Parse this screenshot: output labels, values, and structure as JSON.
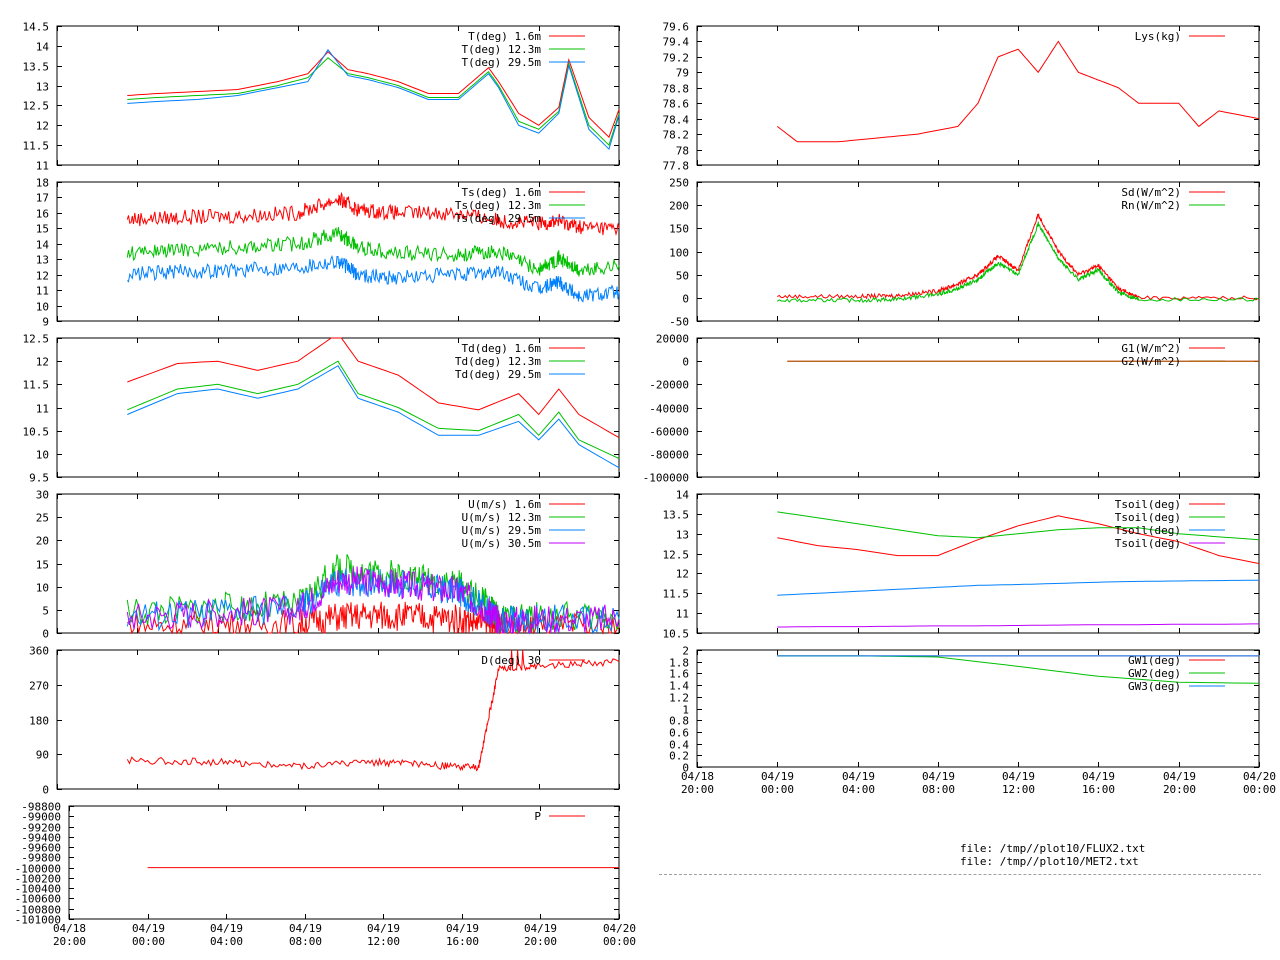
{
  "files": [
    "file: /tmp//plot10/FLUX2.txt",
    "file: /tmp//plot10/MET2.txt"
  ],
  "colors": {
    "red": "#ff0000",
    "green": "#00c000",
    "blue": "#0080ff",
    "purple": "#c000ff"
  },
  "time_ticks": [
    "04/18\n20:00",
    "04/19\n00:00",
    "04/19\n04:00",
    "04/19\n08:00",
    "04/19\n12:00",
    "04/19\n16:00",
    "04/19\n20:00",
    "04/20\n00:00"
  ],
  "chart_data": [
    {
      "id": "T",
      "type": "line",
      "x_range": [
        "04/18 20:00",
        "04/20 00:00"
      ],
      "ylim": [
        11,
        14.5
      ],
      "yticks": [
        "11",
        "11.5",
        "12",
        "12.5",
        "13",
        "13.5",
        "14",
        "14.5"
      ],
      "x": [
        "04/18 23:30",
        "04/19 01:00",
        "04/19 03:00",
        "04/19 05:00",
        "04/19 07:00",
        "04/19 08:30",
        "04/19 09:30",
        "04/19 10:30",
        "04/19 11:30",
        "04/19 13:00",
        "04/19 14:30",
        "04/19 16:00",
        "04/19 17:30",
        "04/19 18:00",
        "04/19 19:00",
        "04/19 20:00",
        "04/19 21:00",
        "04/19 21:30",
        "04/19 22:30",
        "04/19 23:30",
        "04/20 00:00"
      ],
      "series": [
        {
          "name": "T(deg)  1.6m",
          "color": "#ff0000",
          "values": [
            12.75,
            12.8,
            12.85,
            12.9,
            13.1,
            13.3,
            13.85,
            13.4,
            13.3,
            13.1,
            12.8,
            12.8,
            13.45,
            13.1,
            12.3,
            12.0,
            12.45,
            13.65,
            12.2,
            11.7,
            12.4
          ]
        },
        {
          "name": "T(deg) 12.3m",
          "color": "#00c000",
          "values": [
            12.65,
            12.7,
            12.75,
            12.8,
            13.0,
            13.2,
            13.7,
            13.3,
            13.2,
            13.0,
            12.7,
            12.7,
            13.35,
            13.0,
            12.1,
            11.9,
            12.35,
            13.55,
            12.0,
            11.5,
            12.3
          ]
        },
        {
          "name": "T(deg) 29.5m",
          "color": "#0080ff",
          "values": [
            12.55,
            12.6,
            12.65,
            12.75,
            12.95,
            13.1,
            13.9,
            13.25,
            13.15,
            12.95,
            12.65,
            12.65,
            13.3,
            12.95,
            12.0,
            11.8,
            12.3,
            13.5,
            11.9,
            11.4,
            12.25
          ]
        }
      ]
    },
    {
      "id": "Ts",
      "type": "line",
      "x_range": [
        "04/18 20:00",
        "04/20 00:00"
      ],
      "ylim": [
        9,
        18
      ],
      "yticks": [
        "9",
        "10",
        "11",
        "12",
        "13",
        "14",
        "15",
        "16",
        "17",
        "18"
      ],
      "x": [
        "04/18 23:30",
        "04/19 02:00",
        "04/19 05:00",
        "04/19 08:00",
        "04/19 10:00",
        "04/19 11:00",
        "04/19 13:00",
        "04/19 16:00",
        "04/19 18:00",
        "04/19 20:00",
        "04/19 21:00",
        "04/19 22:00",
        "04/20 00:00"
      ],
      "series": [
        {
          "name": "Ts(deg)  1.6m",
          "color": "#ff0000",
          "values": [
            15.6,
            15.7,
            15.8,
            16.0,
            16.9,
            16.2,
            16.0,
            16.0,
            15.5,
            15.3,
            15.5,
            15.1,
            15.0
          ]
        },
        {
          "name": "Ts(deg) 12.3m",
          "color": "#00c000",
          "values": [
            13.4,
            13.6,
            13.8,
            14.0,
            14.7,
            13.8,
            13.4,
            13.3,
            13.5,
            12.3,
            13.1,
            12.2,
            12.6
          ]
        },
        {
          "name": "Ts(deg) 29.5m",
          "color": "#0080ff",
          "values": [
            12.0,
            12.2,
            12.3,
            12.5,
            12.9,
            12.0,
            11.8,
            12.0,
            12.2,
            11.0,
            11.6,
            10.6,
            10.9
          ]
        }
      ]
    },
    {
      "id": "Td",
      "type": "line",
      "x_range": [
        "04/18 20:00",
        "04/20 00:00"
      ],
      "ylim": [
        9.5,
        12.5
      ],
      "yticks": [
        "9.5",
        "10",
        "10.5",
        "11",
        "11.5",
        "12",
        "12.5"
      ],
      "x": [
        "04/18 23:30",
        "04/19 02:00",
        "04/19 04:00",
        "04/19 06:00",
        "04/19 08:00",
        "04/19 10:00",
        "04/19 11:00",
        "04/19 13:00",
        "04/19 15:00",
        "04/19 17:00",
        "04/19 19:00",
        "04/19 20:00",
        "04/19 21:00",
        "04/19 22:00",
        "04/20 00:00"
      ],
      "series": [
        {
          "name": "Td(deg)  1.6m",
          "color": "#ff0000",
          "values": [
            11.55,
            11.95,
            12.0,
            11.8,
            12.0,
            12.6,
            12.0,
            11.7,
            11.1,
            10.95,
            11.3,
            10.85,
            11.4,
            10.85,
            10.35
          ]
        },
        {
          "name": "Td(deg) 12.3m",
          "color": "#00c000",
          "values": [
            10.95,
            11.4,
            11.5,
            11.3,
            11.5,
            12.0,
            11.3,
            11.0,
            10.55,
            10.5,
            10.85,
            10.4,
            10.9,
            10.3,
            9.9
          ]
        },
        {
          "name": "Td(deg) 29.5m",
          "color": "#0080ff",
          "values": [
            10.85,
            11.3,
            11.4,
            11.2,
            11.4,
            11.9,
            11.2,
            10.9,
            10.4,
            10.4,
            10.7,
            10.3,
            10.75,
            10.2,
            9.7
          ]
        }
      ]
    },
    {
      "id": "U",
      "type": "line",
      "x_range": [
        "04/18 20:00",
        "04/20 00:00"
      ],
      "ylim": [
        0,
        30
      ],
      "yticks": [
        "0",
        "5",
        "10",
        "15",
        "20",
        "25",
        "30"
      ],
      "x": [
        "04/18 23:30",
        "04/19 04:00",
        "04/19 08:00",
        "04/19 10:00",
        "04/19 12:00",
        "04/19 14:00",
        "04/19 16:00",
        "04/19 17:30",
        "04/19 18:00",
        "04/19 20:00",
        "04/20 00:00"
      ],
      "series": [
        {
          "name": "U(m/s)  1.6m",
          "color": "#ff0000",
          "values": [
            1.5,
            1.8,
            2.0,
            3.5,
            3.8,
            3.5,
            3.0,
            2.0,
            0.8,
            1.0,
            1.2
          ]
        },
        {
          "name": "U(m/s) 12.3m",
          "color": "#00c000",
          "values": [
            4.5,
            5.5,
            6.0,
            14.0,
            13.0,
            12.0,
            10.5,
            6.0,
            3.0,
            3.5,
            3.5
          ]
        },
        {
          "name": "U(m/s) 29.5m",
          "color": "#0080ff",
          "values": [
            3.5,
            4.5,
            5.0,
            11.0,
            11.0,
            10.0,
            9.0,
            5.0,
            2.5,
            3.0,
            3.0
          ]
        },
        {
          "name": "U(m/s) 30.5m",
          "color": "#c000ff",
          "values": [
            3.5,
            4.5,
            5.0,
            11.5,
            11.0,
            10.0,
            9.0,
            5.0,
            2.5,
            3.0,
            3.0
          ]
        }
      ]
    },
    {
      "id": "D",
      "type": "line",
      "x_range": [
        "04/18 20:00",
        "04/20 00:00"
      ],
      "ylim": [
        0,
        360
      ],
      "yticks": [
        "0",
        "90",
        "180",
        "270",
        "360"
      ],
      "x": [
        "04/18 23:30",
        "04/19 04:00",
        "04/19 08:00",
        "04/19 12:00",
        "04/19 15:00",
        "04/19 17:00",
        "04/19 18:00",
        "04/19 20:00",
        "04/20 00:00"
      ],
      "series": [
        {
          "name": "D(deg) 30",
          "color": "#ff0000",
          "values": [
            75,
            70,
            60,
            70,
            60,
            55,
            310,
            320,
            330
          ]
        }
      ]
    },
    {
      "id": "P",
      "type": "line",
      "x_range": [
        "04/18 20:00",
        "04/20 00:00"
      ],
      "ylim": [
        -101000,
        -98800
      ],
      "yticks": [
        "-101000",
        "-100800",
        "-100600",
        "-100400",
        "-100200",
        "-100000",
        "-99800",
        "-99600",
        "-99400",
        "-99200",
        "-99000",
        "-98800"
      ],
      "x": [
        "04/19 00:00",
        "04/20 00:00"
      ],
      "series": [
        {
          "name": "P",
          "color": "#ff0000",
          "values": [
            -100000,
            -100000
          ]
        }
      ]
    },
    {
      "id": "Lys",
      "type": "line",
      "x_range": [
        "04/18 20:00",
        "04/20 00:00"
      ],
      "ylim": [
        77.8,
        79.6
      ],
      "yticks": [
        "77.8",
        "78",
        "78.2",
        "78.4",
        "78.6",
        "78.8",
        "79",
        "79.2",
        "79.4",
        "79.6"
      ],
      "x": [
        "04/19 00:00",
        "04/19 01:00",
        "04/19 03:00",
        "04/19 05:00",
        "04/19 07:00",
        "04/19 09:00",
        "04/19 10:00",
        "04/19 11:00",
        "04/19 12:00",
        "04/19 13:00",
        "04/19 14:00",
        "04/19 15:00",
        "04/19 16:00",
        "04/19 17:00",
        "04/19 18:00",
        "04/19 20:00",
        "04/19 21:00",
        "04/19 22:00",
        "04/20 00:00"
      ],
      "series": [
        {
          "name": "Lys(kg)",
          "color": "#ff0000",
          "values": [
            78.3,
            78.1,
            78.1,
            78.15,
            78.2,
            78.3,
            78.6,
            79.2,
            79.3,
            79.0,
            79.4,
            79.0,
            78.9,
            78.8,
            78.6,
            78.6,
            78.3,
            78.5,
            78.4
          ]
        }
      ]
    },
    {
      "id": "Sd",
      "type": "line",
      "x_range": [
        "04/18 20:00",
        "04/20 00:00"
      ],
      "ylim": [
        -50,
        250
      ],
      "yticks": [
        "-50",
        "0",
        "50",
        "100",
        "150",
        "200",
        "250"
      ],
      "x": [
        "04/19 00:00",
        "04/19 04:00",
        "04/19 06:00",
        "04/19 08:00",
        "04/19 09:00",
        "04/19 10:00",
        "04/19 11:00",
        "04/19 12:00",
        "04/19 13:00",
        "04/19 14:00",
        "04/19 15:00",
        "04/19 16:00",
        "04/19 17:00",
        "04/19 18:00",
        "04/20 00:00"
      ],
      "series": [
        {
          "name": "Sd(W/m^2)",
          "color": "#ff0000",
          "values": [
            3,
            3,
            5,
            15,
            30,
            50,
            90,
            60,
            180,
            100,
            50,
            70,
            20,
            0,
            0
          ]
        },
        {
          "name": "Rn(W/m^2)",
          "color": "#00c000",
          "values": [
            -5,
            -5,
            -3,
            8,
            20,
            40,
            75,
            50,
            160,
            85,
            40,
            60,
            12,
            -3,
            -3
          ]
        }
      ]
    },
    {
      "id": "G",
      "type": "line",
      "x_range": [
        "04/18 20:00",
        "04/20 00:00"
      ],
      "ylim": [
        -100000,
        20000
      ],
      "yticks": [
        "-100000",
        "-80000",
        "-60000",
        "-40000",
        "-20000",
        "0",
        "20000"
      ],
      "x": [
        "04/19 00:30",
        "04/20 00:00"
      ],
      "series": [
        {
          "name": "G1(W/m^2)",
          "color": "#ff0000",
          "values": [
            0,
            0
          ]
        },
        {
          "name": "G2(W/m^2)",
          "color": "#a06000",
          "values": [
            0,
            0
          ]
        }
      ]
    },
    {
      "id": "Tsoil",
      "type": "line",
      "x_range": [
        "04/18 20:00",
        "04/20 00:00"
      ],
      "ylim": [
        10.5,
        14
      ],
      "yticks": [
        "10.5",
        "11",
        "11.5",
        "12",
        "12.5",
        "13",
        "13.5",
        "14"
      ],
      "x": [
        "04/19 00:00",
        "04/19 02:00",
        "04/19 04:00",
        "04/19 06:00",
        "04/19 08:00",
        "04/19 10:00",
        "04/19 12:00",
        "04/19 14:00",
        "04/19 16:00",
        "04/19 18:00",
        "04/19 20:00",
        "04/19 22:00",
        "04/20 00:00"
      ],
      "series": [
        {
          "name": "Tsoil(deg)",
          "color": "#ff0000",
          "values": [
            12.9,
            12.7,
            12.6,
            12.45,
            12.45,
            12.85,
            13.2,
            13.45,
            13.25,
            13.0,
            12.8,
            12.45,
            12.25
          ]
        },
        {
          "name": "Tsoil(deg)",
          "color": "#00c000",
          "values": [
            13.55,
            13.4,
            13.25,
            13.1,
            12.95,
            12.9,
            13.0,
            13.1,
            13.15,
            13.15,
            13.0,
            12.92,
            12.85
          ]
        },
        {
          "name": "Tsoil(deg)",
          "color": "#0080ff",
          "values": [
            11.45,
            11.5,
            11.55,
            11.6,
            11.65,
            11.7,
            11.72,
            11.75,
            11.78,
            11.8,
            11.81,
            11.82,
            11.83
          ]
        },
        {
          "name": "Tsoil(deg)",
          "color": "#c000ff",
          "values": [
            10.65,
            10.66,
            10.66,
            10.67,
            10.68,
            10.68,
            10.69,
            10.7,
            10.71,
            10.71,
            10.72,
            10.72,
            10.73
          ]
        }
      ]
    },
    {
      "id": "GW",
      "type": "line",
      "x_range": [
        "04/18 20:00",
        "04/20 00:00"
      ],
      "ylim": [
        0,
        2
      ],
      "yticks": [
        "0",
        "0.2",
        "0.4",
        "0.6",
        "0.8",
        "1",
        "1.2",
        "1.4",
        "1.6",
        "1.8",
        "2"
      ],
      "x": [
        "04/19 00:00",
        "04/19 04:00",
        "04/19 08:00",
        "04/19 12:00",
        "04/19 16:00",
        "04/19 20:00",
        "04/20 00:00"
      ],
      "series": [
        {
          "name": "GW1(deg)",
          "color": "#ff0000",
          "values": [
            1.9,
            1.9,
            1.9,
            1.9,
            1.9,
            1.9,
            1.9
          ]
        },
        {
          "name": "GW2(deg)",
          "color": "#00c000",
          "values": [
            1.9,
            1.9,
            1.88,
            1.72,
            1.55,
            1.45,
            1.43
          ]
        },
        {
          "name": "GW3(deg)",
          "color": "#0080ff",
          "values": [
            1.9,
            1.9,
            1.9,
            1.9,
            1.9,
            1.9,
            1.9
          ]
        }
      ]
    }
  ]
}
